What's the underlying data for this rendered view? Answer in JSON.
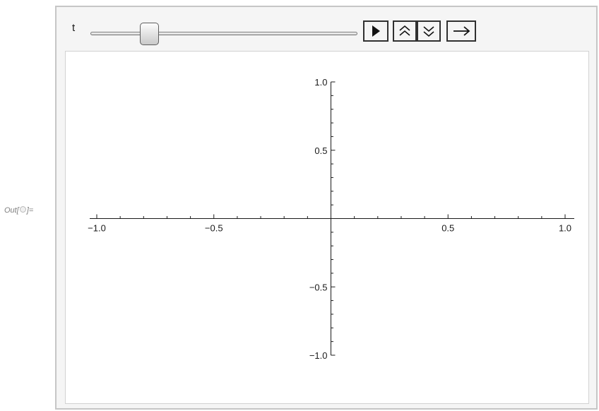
{
  "output_cell": {
    "prefix": "Out[",
    "suffix": "]="
  },
  "manipulate": {
    "variable_label": "t",
    "slider": {
      "position_fraction": 0.2
    },
    "buttons": {
      "play": {
        "icon": "play-icon"
      },
      "faster": {
        "icon": "double-chevron-up-icon"
      },
      "slower": {
        "icon": "double-chevron-down-icon"
      },
      "direction": {
        "icon": "arrow-right-icon"
      }
    },
    "colors": {
      "panel_background": "#f5f5f5",
      "panel_border": "#c6c6c6",
      "plot_background": "#ffffff",
      "axis": "#1a1a1a"
    }
  },
  "chart_data": {
    "type": "line",
    "series": [],
    "xlim": [
      -1.0,
      1.0
    ],
    "ylim": [
      -1.0,
      1.0
    ],
    "x_ticks": [
      {
        "value": -1.0,
        "label": "−1.0"
      },
      {
        "value": -0.5,
        "label": "−0.5"
      },
      {
        "value": 0.5,
        "label": "0.5"
      },
      {
        "value": 1.0,
        "label": "1.0"
      }
    ],
    "y_ticks": [
      {
        "value": 1.0,
        "label": "1.0"
      },
      {
        "value": 0.5,
        "label": "0.5"
      },
      {
        "value": -0.5,
        "label": "−0.5"
      },
      {
        "value": -1.0,
        "label": "−1.0"
      }
    ],
    "minor_tick_step": 0.1,
    "grid": false,
    "title": "",
    "xlabel": "",
    "ylabel": ""
  }
}
